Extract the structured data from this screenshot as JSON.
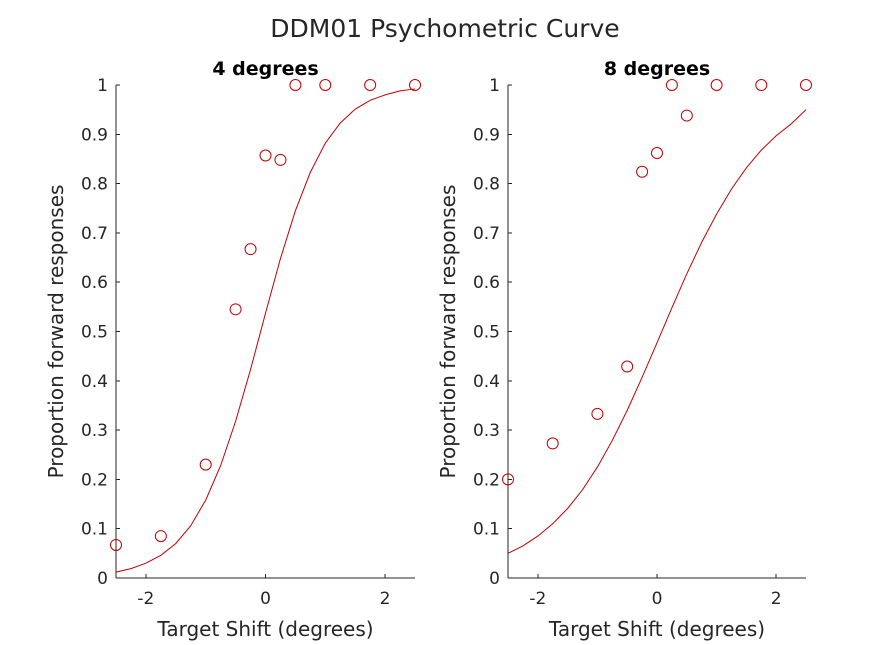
{
  "figure_title": "DDM01 Psychometric Curve",
  "chart_data": [
    {
      "type": "scatter",
      "title": "4 degrees",
      "xlabel": "Target Shift (degrees)",
      "ylabel": "Proportion forward responses",
      "xlim": [
        -2.5,
        2.5
      ],
      "ylim": [
        0,
        1
      ],
      "xticks": [
        -2,
        0,
        2
      ],
      "xtick_labels": [
        "-2",
        "0",
        "2"
      ],
      "yticks": [
        0,
        0.1,
        0.2,
        0.3,
        0.4,
        0.5,
        0.6,
        0.7,
        0.8,
        0.9,
        1
      ],
      "ytick_labels": [
        "0",
        "0.1",
        "0.2",
        "0.3",
        "0.4",
        "0.5",
        "0.6",
        "0.7",
        "0.8",
        "0.9",
        "1"
      ],
      "grid": false,
      "color": "#c00000",
      "marker": "circle",
      "points": {
        "x": [
          -2.5,
          -1.75,
          -1.0,
          -0.5,
          -0.25,
          0.0,
          0.25,
          0.5,
          1.0,
          1.75,
          2.5
        ],
        "y": [
          0.067,
          0.085,
          0.23,
          0.545,
          0.667,
          0.857,
          0.848,
          1.0,
          1.0,
          1.0,
          1.0
        ]
      },
      "fit": {
        "type": "logistic",
        "x": [
          -2.5,
          -2.25,
          -2.0,
          -1.75,
          -1.5,
          -1.25,
          -1.0,
          -0.75,
          -0.5,
          -0.25,
          0.0,
          0.25,
          0.5,
          0.75,
          1.0,
          1.25,
          1.5,
          1.75,
          2.0,
          2.25,
          2.5
        ],
        "y": [
          0.012,
          0.019,
          0.03,
          0.046,
          0.07,
          0.106,
          0.158,
          0.228,
          0.318,
          0.423,
          0.537,
          0.648,
          0.745,
          0.823,
          0.882,
          0.923,
          0.951,
          0.969,
          0.98,
          0.988,
          0.992
        ]
      }
    },
    {
      "type": "scatter",
      "title": "8 degrees",
      "xlabel": "Target Shift (degrees)",
      "ylabel": "Proportion forward responses",
      "xlim": [
        -2.5,
        2.5
      ],
      "ylim": [
        0,
        1
      ],
      "xticks": [
        -2,
        0,
        2
      ],
      "xtick_labels": [
        "-2",
        "0",
        "2"
      ],
      "yticks": [
        0,
        0.1,
        0.2,
        0.3,
        0.4,
        0.5,
        0.6,
        0.7,
        0.8,
        0.9,
        1
      ],
      "ytick_labels": [
        "0",
        "0.1",
        "0.2",
        "0.3",
        "0.4",
        "0.5",
        "0.6",
        "0.7",
        "0.8",
        "0.9",
        "1"
      ],
      "grid": false,
      "color": "#c00000",
      "marker": "circle",
      "points": {
        "x": [
          -2.5,
          -1.75,
          -1.0,
          -0.5,
          -0.25,
          0.0,
          0.25,
          0.5,
          1.0,
          1.75,
          2.5
        ],
        "y": [
          0.2,
          0.273,
          0.333,
          0.429,
          0.824,
          0.862,
          1.0,
          0.938,
          1.0,
          1.0,
          1.0
        ]
      },
      "fit": {
        "type": "logistic",
        "x": [
          -2.5,
          -2.25,
          -2.0,
          -1.75,
          -1.5,
          -1.25,
          -1.0,
          -0.75,
          -0.5,
          -0.25,
          0.0,
          0.25,
          0.5,
          0.75,
          1.0,
          1.25,
          1.5,
          1.75,
          2.0,
          2.25,
          2.5
        ],
        "y": [
          0.05,
          0.065,
          0.085,
          0.11,
          0.141,
          0.179,
          0.225,
          0.279,
          0.34,
          0.407,
          0.477,
          0.548,
          0.617,
          0.681,
          0.738,
          0.789,
          0.832,
          0.868,
          0.897,
          0.921,
          0.95
        ]
      }
    }
  ]
}
